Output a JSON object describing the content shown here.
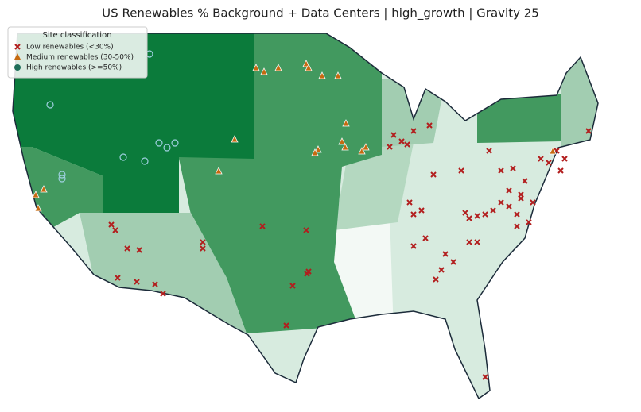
{
  "title": "US Renewables % Background + Data Centers | high_growth | Gravity 25",
  "legend": {
    "title": "Site classification",
    "entries": [
      "Low renewables (<30%)",
      "Medium renewables (30-50%)",
      "High renewables (>=50%)"
    ]
  }
}
